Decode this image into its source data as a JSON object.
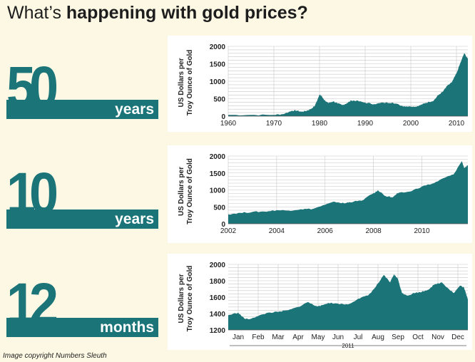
{
  "header": {
    "title_prefix": "What’s ",
    "title_bold": "happening with gold prices?"
  },
  "credit": "Image copyright Numbers Sleuth",
  "colors": {
    "teal": "#1a7478",
    "background": "#fdf8e4",
    "grid": "#c8c8c8"
  },
  "chart_data": [
    {
      "type": "area",
      "label_number": "50",
      "label_unit": "years",
      "ylabel_line1": "US Dollars per",
      "ylabel_line2": "Troy Ounce of Gold",
      "ylim": [
        0,
        2000
      ],
      "yticks": [
        0,
        500,
        1000,
        1500,
        2000
      ],
      "xlim": [
        1960,
        2012.5
      ],
      "xticks": [
        {
          "x": 1960,
          "label": "1960"
        },
        {
          "x": 1970,
          "label": "1970"
        },
        {
          "x": 1980,
          "label": "1980"
        },
        {
          "x": 1990,
          "label": "1990"
        },
        {
          "x": 2000,
          "label": "2000"
        },
        {
          "x": 2010,
          "label": "2010"
        }
      ],
      "x": [
        1960,
        1965,
        1970,
        1972,
        1974,
        1975,
        1976,
        1977,
        1978,
        1979,
        1980,
        1980.5,
        1981,
        1982,
        1983,
        1984,
        1985,
        1986,
        1987,
        1988,
        1990,
        1992,
        1994,
        1996,
        1998,
        1999,
        2000,
        2001,
        2002,
        2003,
        2004,
        2005,
        2006,
        2007,
        2008,
        2009,
        2010,
        2011,
        2011.7,
        2012.5
      ],
      "values": [
        35,
        35,
        36,
        58,
        155,
        160,
        125,
        150,
        195,
        300,
        615,
        580,
        460,
        375,
        425,
        360,
        317,
        370,
        450,
        440,
        385,
        345,
        385,
        390,
        295,
        280,
        280,
        272,
        310,
        365,
        410,
        445,
        600,
        700,
        870,
        970,
        1225,
        1570,
        1800,
        1650
      ]
    },
    {
      "type": "area",
      "label_number": "10",
      "label_unit": "years",
      "ylabel_line1": "US Dollars per",
      "ylabel_line2": "Troy Ounce of Gold",
      "ylim": [
        0,
        2000
      ],
      "yticks": [
        0,
        500,
        1000,
        1500,
        2000
      ],
      "xlim": [
        2002,
        2011.9
      ],
      "xticks": [
        {
          "x": 2002,
          "label": "2002"
        },
        {
          "x": 2004,
          "label": "2004"
        },
        {
          "x": 2006,
          "label": "2006"
        },
        {
          "x": 2008,
          "label": "2008"
        },
        {
          "x": 2010,
          "label": "2010"
        }
      ],
      "x": [
        2002,
        2002.5,
        2003,
        2003.5,
        2004,
        2004.5,
        2005,
        2005.5,
        2006,
        2006.4,
        2006.8,
        2007,
        2007.5,
        2008,
        2008.2,
        2008.5,
        2008.8,
        2009,
        2009.5,
        2010,
        2010.5,
        2011,
        2011.3,
        2011.65,
        2011.75,
        2011.9
      ],
      "values": [
        280,
        320,
        350,
        360,
        400,
        390,
        430,
        440,
        560,
        650,
        600,
        640,
        680,
        900,
        980,
        820,
        780,
        900,
        950,
        1100,
        1200,
        1380,
        1450,
        1850,
        1650,
        1720
      ]
    },
    {
      "type": "area",
      "label_number": "12",
      "label_unit": "months",
      "ylabel_line1": "US Dollars per",
      "ylabel_line2": "Troy Ounce of Gold",
      "ylim": [
        1200,
        2000
      ],
      "yticks": [
        1200,
        1400,
        1600,
        1800,
        2000
      ],
      "xlim": [
        0,
        12
      ],
      "xticks": [
        {
          "x": 0.5,
          "label": "Jan"
        },
        {
          "x": 1.5,
          "label": "Feb"
        },
        {
          "x": 2.5,
          "label": "Mar"
        },
        {
          "x": 3.5,
          "label": "Apr"
        },
        {
          "x": 4.5,
          "label": "May"
        },
        {
          "x": 5.5,
          "label": "Jun"
        },
        {
          "x": 6.5,
          "label": "Jul"
        },
        {
          "x": 7.5,
          "label": "Aug"
        },
        {
          "x": 8.5,
          "label": "Sep"
        },
        {
          "x": 9.5,
          "label": "Oct"
        },
        {
          "x": 10.5,
          "label": "Nov"
        },
        {
          "x": 11.5,
          "label": "Dec"
        }
      ],
      "year_label": "2011",
      "x": [
        0,
        0.5,
        0.8,
        1.0,
        1.5,
        2.0,
        2.5,
        3.0,
        3.5,
        4.0,
        4.3,
        4.6,
        5.0,
        5.5,
        6.0,
        6.5,
        7.0,
        7.3,
        7.6,
        7.8,
        8.1,
        8.3,
        8.5,
        8.7,
        9.0,
        9.3,
        9.6,
        10.0,
        10.3,
        10.7,
        11.0,
        11.3,
        11.6,
        11.8,
        12.0
      ],
      "values": [
        1380,
        1410,
        1340,
        1330,
        1370,
        1410,
        1420,
        1440,
        1480,
        1540,
        1500,
        1490,
        1530,
        1520,
        1510,
        1580,
        1620,
        1700,
        1800,
        1870,
        1780,
        1880,
        1820,
        1650,
        1620,
        1650,
        1660,
        1690,
        1750,
        1780,
        1710,
        1650,
        1740,
        1720,
        1570
      ]
    }
  ]
}
